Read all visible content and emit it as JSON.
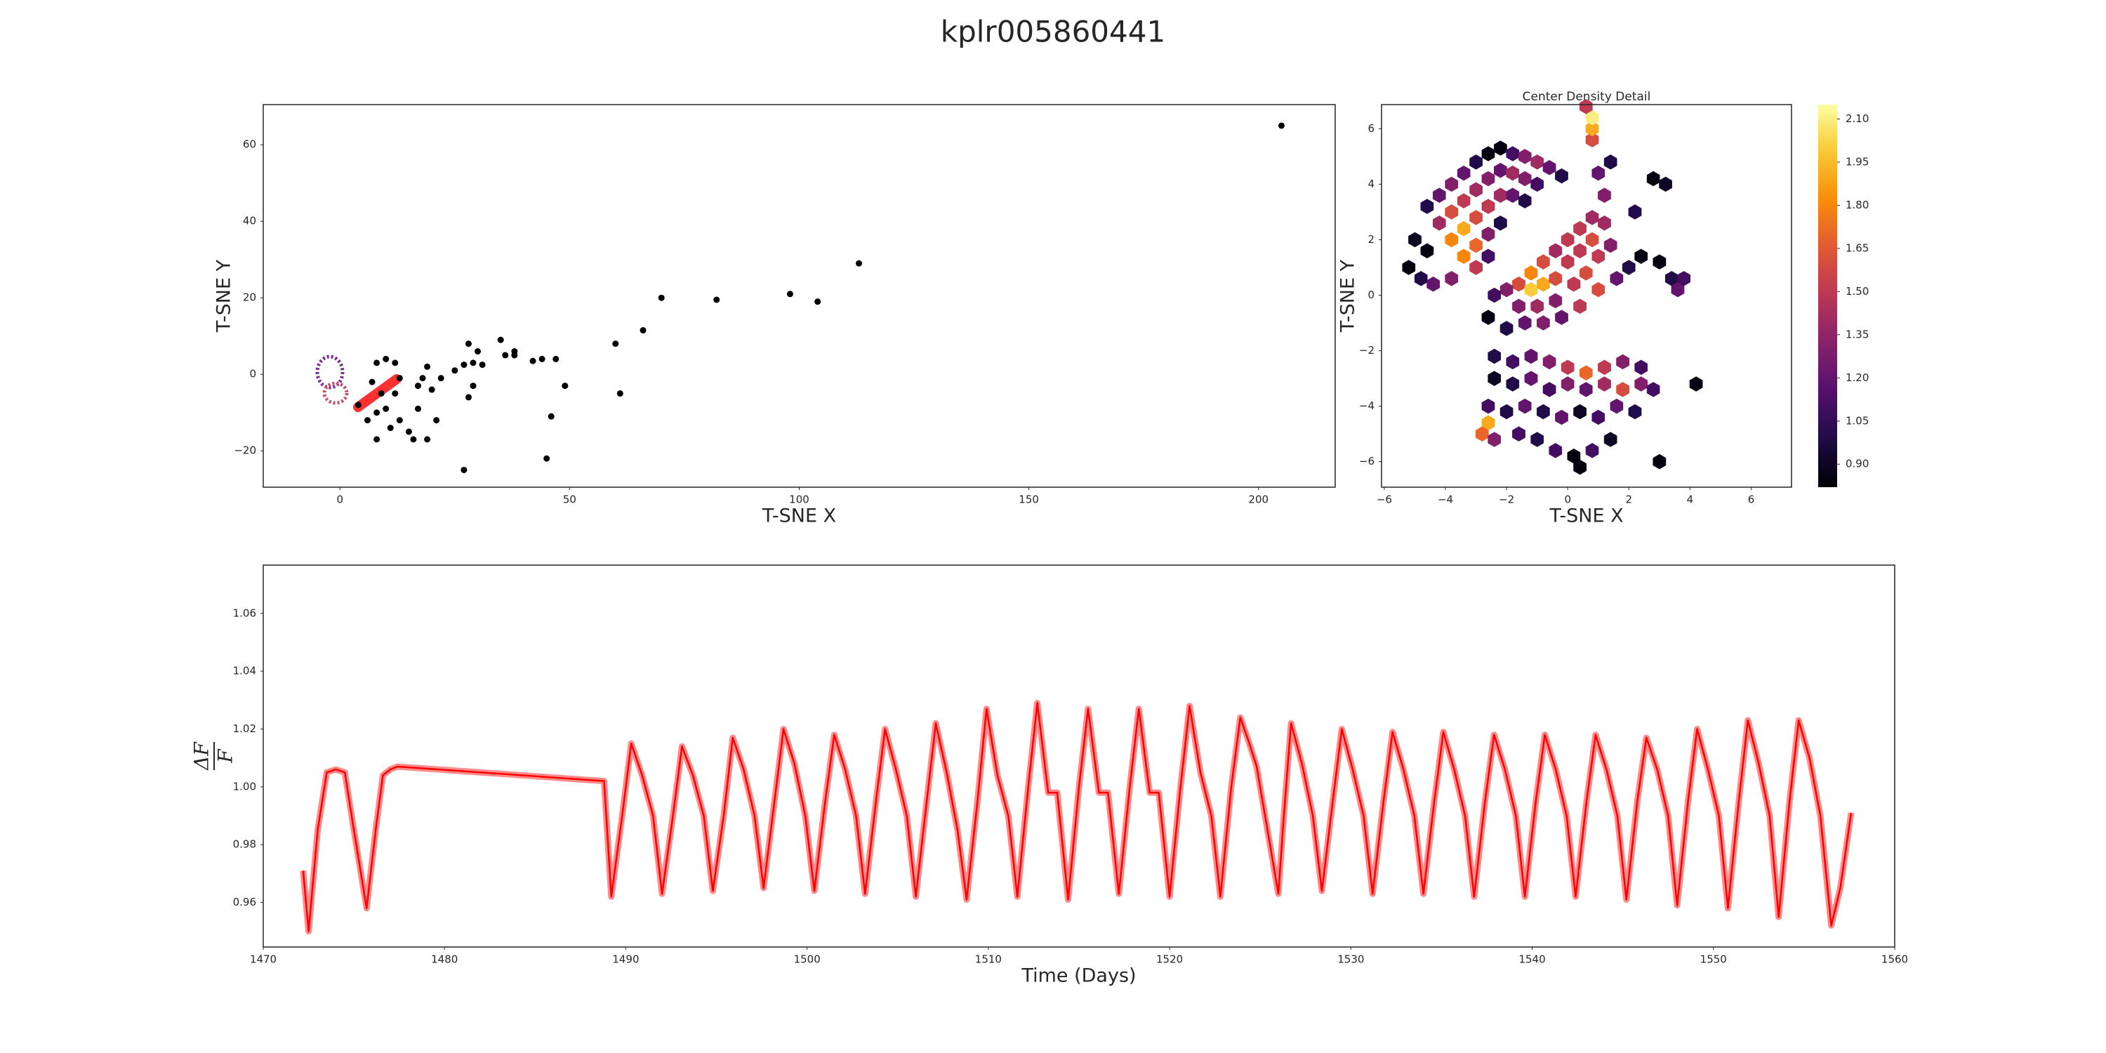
{
  "title": "kplr005860441",
  "chart_data": [
    {
      "type": "scatter",
      "xlabel": "T-SNE X",
      "ylabel": "T-SNE Y",
      "color": "#000000",
      "xlim": [
        -16.7,
        216.7
      ],
      "ylim": [
        -29.5,
        70.5
      ],
      "xticks": [
        0,
        50,
        100,
        150,
        200
      ],
      "yticks": [
        {
          "value": -20,
          "label": "−20"
        },
        0,
        20,
        40,
        60
      ],
      "x": [
        205,
        113,
        70,
        82,
        98,
        104,
        66,
        60,
        61,
        46,
        45,
        27,
        49,
        42,
        44,
        47,
        35,
        36,
        38,
        38,
        28,
        30,
        29,
        27,
        31,
        25,
        22,
        18,
        19,
        17,
        29,
        28,
        20,
        21,
        17,
        16,
        15,
        19,
        13,
        11,
        8,
        10,
        12,
        13,
        9,
        8,
        10,
        12,
        7,
        6,
        4,
        8
      ],
      "y": [
        65,
        29,
        20,
        19.5,
        21,
        19,
        11.5,
        8,
        -5,
        -11,
        -22,
        -25,
        -3,
        3.5,
        4,
        4,
        9,
        5,
        6,
        5,
        8,
        6,
        3,
        2.5,
        2.5,
        1,
        -1,
        -1,
        2,
        -3,
        -3,
        -6,
        -4,
        -12,
        -9,
        -17,
        -15,
        -17,
        -12,
        -14,
        -17,
        -9,
        -5,
        -1,
        -5,
        3,
        4,
        3,
        -2,
        -12,
        -8,
        -10
      ]
    },
    {
      "type": "hexbin",
      "title": "Center Density Detail",
      "xlabel": "T-SNE X",
      "ylabel": "T-SNE Y",
      "colormap": "inferno",
      "clim": [
        0.82,
        2.15
      ],
      "cticks": [
        {
          "value": 0.9,
          "label": "0.90"
        },
        {
          "value": 1.05,
          "label": "1.05"
        },
        {
          "value": 1.2,
          "label": "1.20"
        },
        {
          "value": 1.35,
          "label": "1.35"
        },
        {
          "value": 1.5,
          "label": "1.50"
        },
        {
          "value": 1.65,
          "label": "1.65"
        },
        {
          "value": 1.8,
          "label": "1.80"
        },
        {
          "value": 1.95,
          "label": "1.95"
        },
        {
          "value": 2.1,
          "label": "2.10"
        }
      ],
      "xlim": [
        -6.09,
        7.32
      ],
      "ylim": [
        -6.92,
        6.87
      ],
      "xticks": [
        {
          "value": -6,
          "label": "−6"
        },
        {
          "value": -4,
          "label": "−4"
        },
        {
          "value": -2,
          "label": "−2"
        },
        0,
        2,
        4,
        6
      ],
      "yticks": [
        {
          "value": -6,
          "label": "−6"
        },
        {
          "value": -4,
          "label": "−4"
        },
        {
          "value": -2,
          "label": "−2"
        },
        0,
        2,
        4,
        6
      ],
      "x": [
        -4.6,
        -4.2,
        -3.8,
        -3.4,
        -3.0,
        -2.6,
        -2.2,
        -1.8,
        -1.4,
        -1.0,
        -0.6,
        -0.2,
        -4.2,
        -3.8,
        -3.4,
        -3.0,
        -2.6,
        -2.2,
        -1.8,
        -1.4,
        -1.0,
        -3.8,
        -3.4,
        -3.0,
        -2.6,
        -2.2,
        -1.8,
        -1.4,
        -3.4,
        -3.0,
        -2.6,
        -2.2,
        -3.0,
        -2.6,
        -4.6,
        -5.0,
        -5.2,
        -4.8,
        -4.4,
        -3.8,
        -1.6,
        -1.2,
        -0.8,
        -0.4,
        0.0,
        0.4,
        0.8,
        1.2,
        1.0,
        1.4,
        0.8,
        0.8,
        0.8,
        0.6,
        -1.2,
        -0.8,
        -0.4,
        0.0,
        0.4,
        0.8,
        1.2,
        -2.0,
        -2.4,
        -1.6,
        -1.0,
        -0.4,
        0.2,
        0.6,
        1.0,
        1.4,
        -2.6,
        -2.0,
        -1.4,
        -0.8,
        -0.2,
        0.4,
        1.0,
        1.6,
        2.0,
        2.4,
        3.0,
        3.4,
        -2.4,
        -1.8,
        -1.2,
        -0.6,
        0.0,
        0.6,
        1.2,
        1.8,
        2.4,
        -2.4,
        -1.8,
        -1.2,
        -0.6,
        0.0,
        0.6,
        1.2,
        1.8,
        2.4,
        2.8,
        -2.6,
        -2.0,
        -1.4,
        -0.8,
        -0.2,
        0.4,
        1.0,
        1.6,
        2.2,
        -2.6,
        -2.8,
        -2.4,
        -1.6,
        -1.0,
        -0.4,
        0.2,
        0.8,
        1.4,
        0.4,
        3.0,
        4.2,
        2.8,
        3.2,
        2.2,
        3.6,
        3.8
      ],
      "y": [
        3.2,
        3.6,
        4.0,
        4.4,
        4.8,
        5.1,
        5.3,
        5.1,
        5.0,
        4.8,
        4.6,
        4.3,
        2.6,
        3.0,
        3.4,
        3.8,
        4.2,
        4.5,
        4.4,
        4.2,
        4.0,
        2.0,
        2.4,
        2.8,
        3.2,
        3.6,
        3.6,
        3.4,
        1.4,
        1.8,
        2.2,
        2.6,
        1.0,
        1.4,
        1.6,
        2.0,
        1.0,
        0.6,
        0.4,
        0.6,
        0.4,
        0.8,
        1.2,
        1.6,
        2.0,
        2.4,
        2.8,
        3.6,
        4.4,
        4.8,
        5.6,
        6.0,
        6.4,
        6.8,
        0.2,
        0.4,
        0.6,
        1.2,
        1.6,
        2.0,
        2.6,
        0.2,
        0.0,
        -0.4,
        -0.4,
        -0.2,
        0.4,
        0.8,
        1.4,
        1.8,
        -0.8,
        -1.2,
        -1.0,
        -1.0,
        -0.8,
        -0.4,
        0.2,
        0.6,
        1.0,
        1.4,
        1.2,
        0.6,
        -2.2,
        -2.4,
        -2.2,
        -2.4,
        -2.6,
        -2.8,
        -2.6,
        -2.4,
        -2.6,
        -3.0,
        -3.2,
        -3.0,
        -3.4,
        -3.2,
        -3.4,
        -3.2,
        -3.4,
        -3.2,
        -3.4,
        -4.0,
        -4.2,
        -4.0,
        -4.2,
        -4.4,
        -4.2,
        -4.4,
        -4.0,
        -4.2,
        -4.6,
        -5.0,
        -5.2,
        -5.0,
        -5.2,
        -5.6,
        -5.8,
        -5.6,
        -5.2,
        -6.2,
        -6.0,
        -3.2,
        4.2,
        4.0,
        3.0,
        0.2,
        0.6
      ],
      "values": [
        1.0,
        1.2,
        1.3,
        1.2,
        1.0,
        0.85,
        0.85,
        1.1,
        1.3,
        1.4,
        1.2,
        1.0,
        1.4,
        1.6,
        1.5,
        1.4,
        1.3,
        1.2,
        1.4,
        1.3,
        1.1,
        1.8,
        1.9,
        1.6,
        1.5,
        1.4,
        1.2,
        1.0,
        1.8,
        1.7,
        1.3,
        1.0,
        1.5,
        1.1,
        0.85,
        0.9,
        0.85,
        1.0,
        1.2,
        1.3,
        1.6,
        1.8,
        1.6,
        1.4,
        1.5,
        1.5,
        1.4,
        1.3,
        1.2,
        1.0,
        1.6,
        1.9,
        2.1,
        1.5,
        2.0,
        1.9,
        1.6,
        1.5,
        1.5,
        1.6,
        1.4,
        1.3,
        1.1,
        1.3,
        1.4,
        1.3,
        1.5,
        1.6,
        1.5,
        1.3,
        0.85,
        1.0,
        1.2,
        1.3,
        1.2,
        1.5,
        1.6,
        1.2,
        1.0,
        0.85,
        0.85,
        1.0,
        1.0,
        1.1,
        1.2,
        1.3,
        1.5,
        1.7,
        1.5,
        1.3,
        1.1,
        0.9,
        1.0,
        1.2,
        1.1,
        1.3,
        1.2,
        1.4,
        1.6,
        1.3,
        1.1,
        1.1,
        1.0,
        1.2,
        1.0,
        1.2,
        0.9,
        1.1,
        1.2,
        1.0,
        1.9,
        1.7,
        1.3,
        1.1,
        1.0,
        1.1,
        0.85,
        1.1,
        0.9,
        0.85,
        0.85,
        0.85,
        0.85,
        0.9,
        1.0,
        1.2,
        1.1
      ]
    },
    {
      "type": "line",
      "xlabel": "Time (Days)",
      "ylabel_numerator": "ΔF",
      "ylabel_denominator": "F",
      "color": "#ff0000",
      "xlim": [
        1470,
        1560
      ],
      "ylim": [
        0.9446,
        1.0767
      ],
      "xticks": [
        1470,
        1480,
        1490,
        1500,
        1510,
        1520,
        1530,
        1540,
        1550,
        1560
      ],
      "yticks": [
        0.96,
        0.98,
        {
          "value": 1,
          "label": "1.00"
        },
        1.02,
        1.04,
        1.06
      ],
      "x": [
        1472.2,
        1472.5,
        1473.0,
        1473.5,
        1474.0,
        1474.5,
        1475.0,
        1475.7,
        1476.2,
        1476.6,
        1477.0,
        1477.4,
        1488.8,
        1489.2,
        1489.8,
        1490.3,
        1490.9,
        1491.5,
        1492.0,
        1492.6,
        1493.1,
        1493.7,
        1494.3,
        1494.8,
        1495.4,
        1495.9,
        1496.5,
        1497.1,
        1497.6,
        1498.2,
        1498.7,
        1499.3,
        1499.9,
        1500.4,
        1501.0,
        1501.5,
        1502.1,
        1502.7,
        1503.2,
        1503.8,
        1504.3,
        1504.9,
        1505.5,
        1506.0,
        1506.6,
        1507.1,
        1507.7,
        1508.3,
        1508.8,
        1509.4,
        1509.9,
        1510.5,
        1511.1,
        1511.6,
        1512.2,
        1512.7,
        1513.3,
        1513.8,
        1514.4,
        1515.0,
        1515.5,
        1516.1,
        1516.6,
        1517.2,
        1517.8,
        1518.3,
        1518.9,
        1519.4,
        1520.0,
        1520.6,
        1521.1,
        1521.7,
        1522.3,
        1522.8,
        1523.4,
        1523.9,
        1524.4,
        1524.8,
        1526.0,
        1526.3,
        1526.7,
        1527.3,
        1527.9,
        1528.4,
        1529.0,
        1529.5,
        1530.1,
        1530.7,
        1531.2,
        1531.8,
        1532.3,
        1532.9,
        1533.5,
        1534.0,
        1534.6,
        1535.1,
        1535.7,
        1536.3,
        1536.8,
        1537.4,
        1537.9,
        1538.5,
        1539.1,
        1539.6,
        1540.2,
        1540.7,
        1541.3,
        1541.9,
        1542.4,
        1543.0,
        1543.5,
        1544.1,
        1544.7,
        1545.2,
        1545.8,
        1546.3,
        1546.9,
        1547.5,
        1548.0,
        1548.6,
        1549.1,
        1549.7,
        1550.3,
        1550.8,
        1551.4,
        1551.9,
        1552.5,
        1553.1,
        1553.6,
        1554.2,
        1554.7,
        1555.3,
        1555.9,
        1556.5,
        1557.0,
        1557.6
      ],
      "y": [
        0.971,
        0.95,
        0.985,
        1.005,
        1.006,
        1.005,
        0.985,
        0.958,
        0.985,
        1.004,
        1.006,
        1.007,
        1.002,
        0.962,
        0.99,
        1.015,
        1.004,
        0.99,
        0.963,
        0.99,
        1.014,
        1.004,
        0.99,
        0.964,
        0.99,
        1.017,
        1.006,
        0.99,
        0.965,
        0.995,
        1.02,
        1.008,
        0.99,
        0.964,
        0.995,
        1.018,
        1.006,
        0.99,
        0.963,
        0.995,
        1.02,
        1.006,
        0.99,
        0.962,
        0.995,
        1.022,
        1.005,
        0.985,
        0.961,
        0.995,
        1.027,
        1.004,
        0.99,
        0.962,
        1.0,
        1.029,
        0.998,
        0.998,
        0.961,
        1.0,
        1.027,
        0.998,
        0.998,
        0.963,
        1.0,
        1.027,
        0.998,
        0.998,
        0.962,
        1.0,
        1.028,
        1.005,
        0.99,
        0.962,
        1.0,
        1.024,
        1.015,
        1.007,
        0.963,
        0.99,
        1.022,
        1.008,
        0.99,
        0.964,
        0.995,
        1.02,
        1.006,
        0.99,
        0.963,
        0.995,
        1.019,
        1.006,
        0.99,
        0.963,
        0.995,
        1.019,
        1.006,
        0.99,
        0.962,
        0.995,
        1.018,
        1.006,
        0.99,
        0.962,
        0.995,
        1.018,
        1.006,
        0.99,
        0.962,
        0.995,
        1.018,
        1.006,
        0.99,
        0.961,
        0.995,
        1.017,
        1.006,
        0.99,
        0.959,
        0.995,
        1.02,
        1.006,
        0.99,
        0.958,
        0.995,
        1.023,
        1.008,
        0.99,
        0.955,
        0.995,
        1.023,
        1.01,
        0.99,
        0.952,
        0.965,
        0.991
      ]
    }
  ]
}
